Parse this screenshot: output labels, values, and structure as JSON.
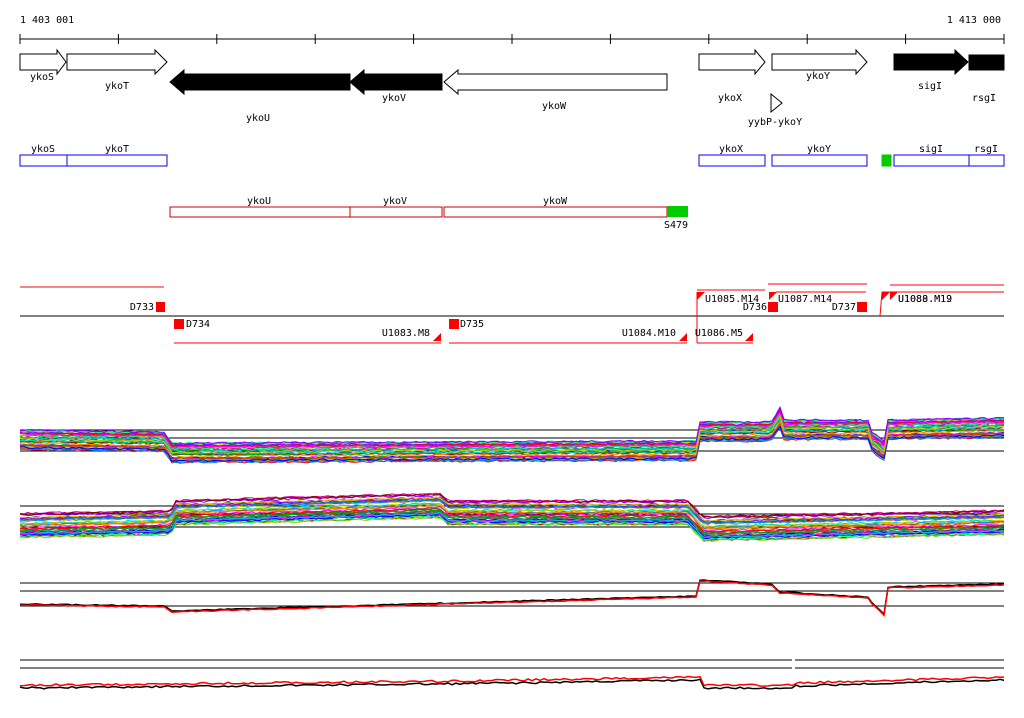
{
  "ruler": {
    "start": "1 403 001",
    "end": "1 413 000"
  },
  "colors": {
    "forward_gene": "#ffffff",
    "reverse_gene": "#000000",
    "transcript_box": "#0000ff",
    "reverse_transcript_box": "#cc0000",
    "marker_green": "#00cc00",
    "probe_red": "#ff0000",
    "expr_black": "#000000",
    "expr_red": "#ff0000"
  },
  "genes": [
    {
      "label": "ykoS",
      "strand": "+"
    },
    {
      "label": "ykoT",
      "strand": "+"
    },
    {
      "label": "ykoU",
      "strand": "-"
    },
    {
      "label": "ykoV",
      "strand": "-"
    },
    {
      "label": "ykoW",
      "strand": "-"
    },
    {
      "label": "ykoX",
      "strand": "+"
    },
    {
      "label": "ykoY",
      "strand": "+"
    },
    {
      "label": "sigI",
      "strand": "+"
    },
    {
      "label": "rsgI",
      "strand": "+"
    }
  ],
  "terminator_label": "yybP-ykoY",
  "transcripts_forward": [
    "ykoS",
    "ykoT",
    "ykoX",
    "ykoY",
    "sigI",
    "rsgI"
  ],
  "transcripts_reverse": [
    "ykoU",
    "ykoV",
    "ykoW"
  ],
  "site_label": "S479",
  "segments_top": [
    "D733",
    "U1085.M14",
    "D736",
    "U1087.M14",
    "D737",
    "U1088.M19",
    "U1089.M12"
  ],
  "segments_bottom": [
    "D734",
    "U1083.M8",
    "D735",
    "U1084.M10",
    "U1086.M5"
  ]
}
